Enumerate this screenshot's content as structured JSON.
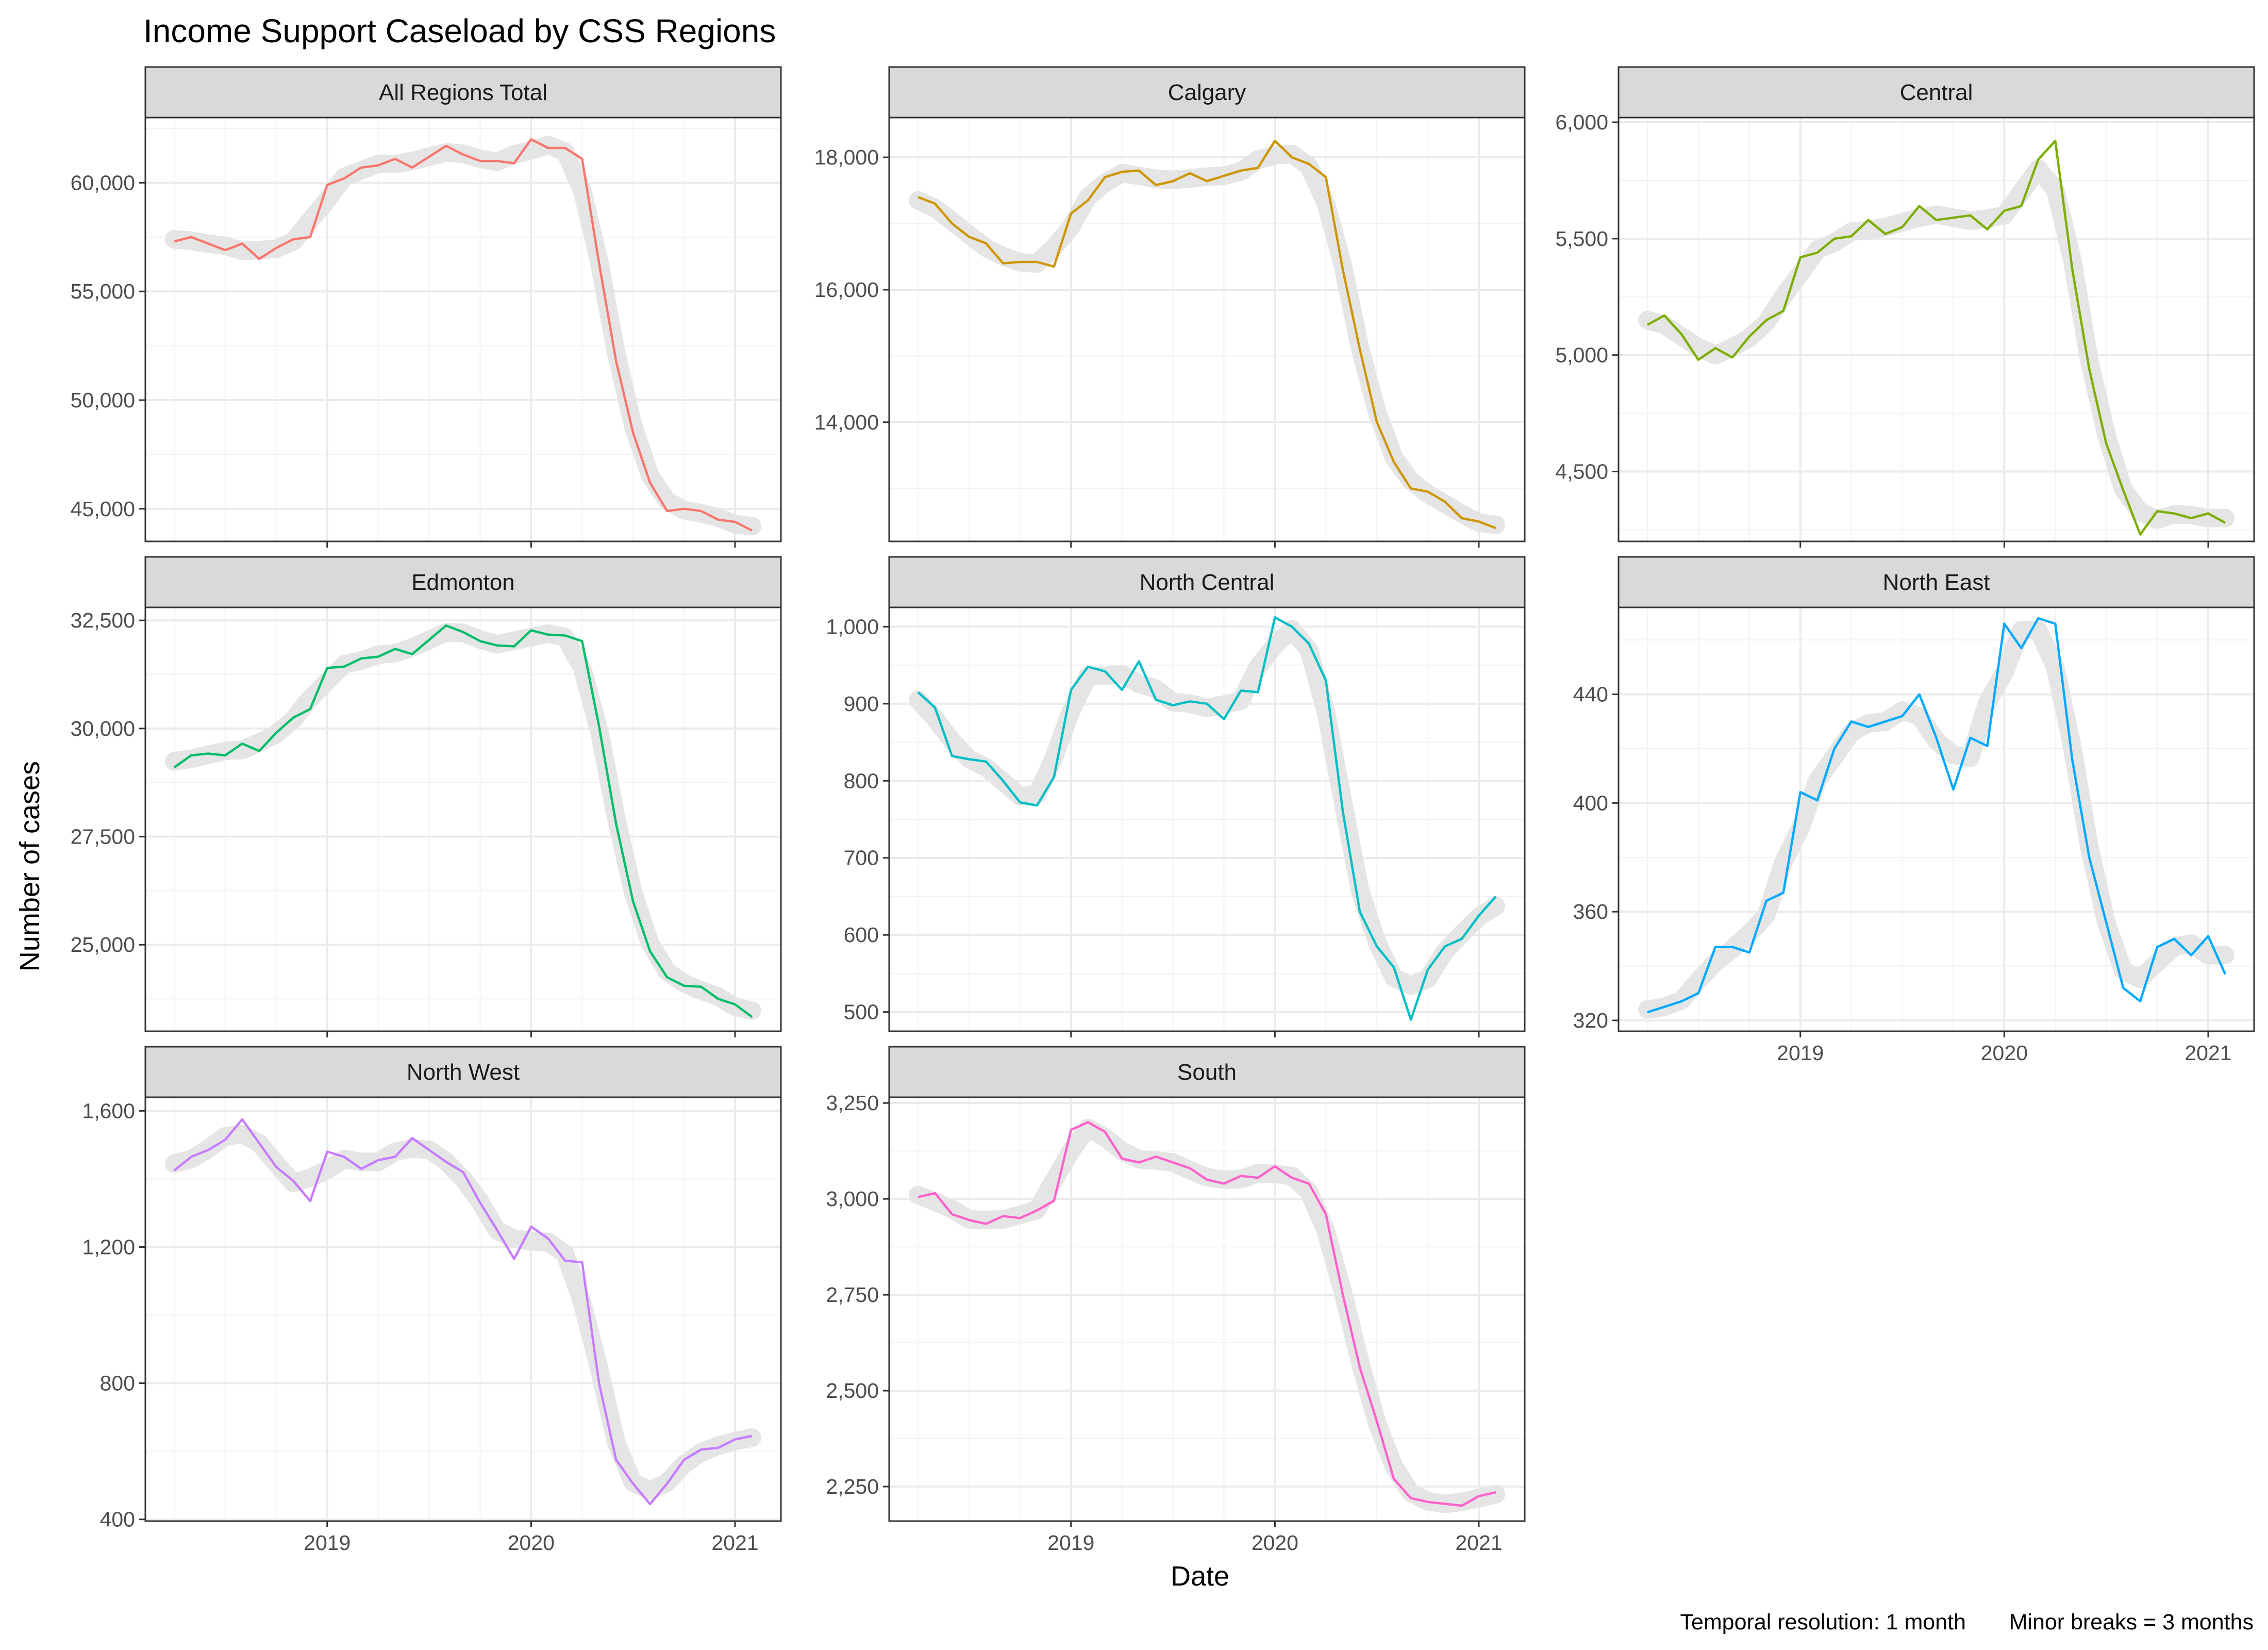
{
  "chart_data": {
    "type": "line",
    "title": "Income Support Caseload by CSS Regions",
    "xlabel": "Date",
    "ylabel": "Number of cases",
    "caption": "Temporal resolution: 1 month       Minor breaks = 3 months",
    "x_start": "2018-04",
    "x_end": "2021-02",
    "x_frequency": "monthly",
    "x_ticks": [
      "2019",
      "2020",
      "2021"
    ],
    "grid": true,
    "legend": "none",
    "background_band": {
      "color": "#e5e5e5",
      "meaning": "smoothed trend"
    },
    "series": [
      {
        "name": "All Regions Total",
        "color": "#F8766D",
        "ylim": [
          43500,
          63000
        ],
        "y_ticks": [
          45000,
          50000,
          55000,
          60000
        ],
        "y_tick_labels": [
          "45,000",
          "50,000",
          "55,000",
          "60,000"
        ],
        "values": [
          57300,
          57500,
          57200,
          56900,
          57200,
          56500,
          57000,
          57400,
          57500,
          59900,
          60200,
          60700,
          60800,
          61100,
          60700,
          61200,
          61700,
          61300,
          61000,
          61000,
          60900,
          62000,
          61600,
          61600,
          61100,
          56300,
          51800,
          48500,
          46200,
          44900,
          45000,
          44900,
          44500,
          44400,
          44000
        ]
      },
      {
        "name": "Calgary",
        "color": "#CD9600",
        "ylim": [
          12200,
          18600
        ],
        "y_ticks": [
          14000,
          16000,
          18000
        ],
        "y_tick_labels": [
          "14,000",
          "16,000",
          "18,000"
        ],
        "values": [
          17400,
          17300,
          17000,
          16800,
          16700,
          16400,
          16420,
          16420,
          16350,
          17150,
          17350,
          17700,
          17780,
          17800,
          17580,
          17640,
          17760,
          17640,
          17720,
          17800,
          17840,
          18250,
          18000,
          17900,
          17700,
          16300,
          15100,
          14000,
          13400,
          13000,
          12950,
          12800,
          12550,
          12500,
          12400
        ]
      },
      {
        "name": "Central",
        "color": "#7CAE00",
        "ylim": [
          4200,
          6020
        ],
        "y_ticks": [
          4500,
          5000,
          5500,
          6000
        ],
        "y_tick_labels": [
          "4,500",
          "5,000",
          "5,500",
          "6,000"
        ],
        "values": [
          5130,
          5170,
          5090,
          4980,
          5030,
          4990,
          5080,
          5150,
          5190,
          5420,
          5440,
          5500,
          5510,
          5580,
          5520,
          5550,
          5640,
          5580,
          5590,
          5600,
          5540,
          5620,
          5640,
          5840,
          5920,
          5370,
          4940,
          4620,
          4420,
          4230,
          4330,
          4320,
          4300,
          4320,
          4280
        ]
      },
      {
        "name": "Edmonton",
        "color": "#00BE67",
        "ylim": [
          23000,
          32800
        ],
        "y_ticks": [
          25000,
          27500,
          30000,
          32500
        ],
        "y_tick_labels": [
          "25,000",
          "27,500",
          "30,000",
          "32,500"
        ],
        "values": [
          29100,
          29380,
          29420,
          29380,
          29650,
          29480,
          29900,
          30250,
          30450,
          31400,
          31430,
          31620,
          31660,
          31840,
          31720,
          32050,
          32380,
          32230,
          32020,
          31920,
          31900,
          32270,
          32170,
          32150,
          32020,
          30050,
          27800,
          26000,
          24850,
          24250,
          24050,
          24030,
          23750,
          23620,
          23330
        ]
      },
      {
        "name": "North Central",
        "color": "#00BFC4",
        "ylim": [
          475,
          1025
        ],
        "y_ticks": [
          500,
          600,
          700,
          800,
          900,
          1000
        ],
        "y_tick_labels": [
          "500",
          "600",
          "700",
          "800",
          "900",
          "1,000"
        ],
        "values": [
          915,
          895,
          832,
          828,
          825,
          800,
          772,
          768,
          805,
          918,
          948,
          942,
          918,
          955,
          905,
          898,
          903,
          900,
          880,
          917,
          915,
          1012,
          1000,
          978,
          930,
          760,
          630,
          585,
          558,
          490,
          555,
          585,
          595,
          625,
          650
        ]
      },
      {
        "name": "North East",
        "color": "#00A9FF",
        "ylim": [
          316,
          472
        ],
        "y_ticks": [
          320,
          360,
          400,
          440
        ],
        "y_tick_labels": [
          "320",
          "360",
          "400",
          "440"
        ],
        "values": [
          323,
          325,
          327,
          330,
          347,
          347,
          345,
          364,
          367,
          404,
          401,
          420,
          430,
          428,
          430,
          432,
          440,
          424,
          405,
          424,
          421,
          466,
          457,
          468,
          466,
          416,
          380,
          356,
          332,
          327,
          347,
          350,
          344,
          351,
          337
        ]
      },
      {
        "name": "North West",
        "color": "#C77CFF",
        "ylim": [
          395,
          1640
        ],
        "y_ticks": [
          400,
          800,
          1200,
          1600
        ],
        "y_tick_labels": [
          "400",
          "800",
          "1,200",
          "1,600"
        ],
        "values": [
          1425,
          1465,
          1485,
          1515,
          1575,
          1505,
          1435,
          1395,
          1335,
          1480,
          1465,
          1430,
          1455,
          1465,
          1520,
          1485,
          1450,
          1420,
          1330,
          1250,
          1165,
          1260,
          1225,
          1160,
          1155,
          800,
          575,
          505,
          445,
          505,
          575,
          605,
          610,
          635,
          645
        ]
      },
      {
        "name": "South",
        "color": "#FF61CC",
        "ylim": [
          2160,
          3265
        ],
        "y_ticks": [
          2250,
          2500,
          2750,
          3000,
          3250
        ],
        "y_tick_labels": [
          "2,250",
          "2,500",
          "2,750",
          "3,000",
          "3,250"
        ],
        "values": [
          3005,
          3015,
          2960,
          2945,
          2935,
          2955,
          2950,
          2970,
          2995,
          3180,
          3200,
          3175,
          3105,
          3095,
          3110,
          3095,
          3080,
          3050,
          3040,
          3060,
          3055,
          3085,
          3055,
          3040,
          2960,
          2750,
          2560,
          2420,
          2270,
          2220,
          2210,
          2205,
          2200,
          2225,
          2235
        ]
      }
    ]
  }
}
